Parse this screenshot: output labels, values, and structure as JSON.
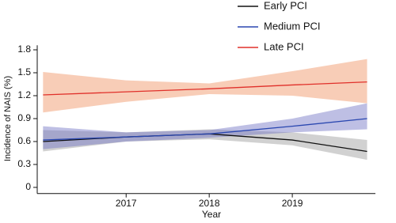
{
  "chart_data": {
    "type": "line",
    "y_label": "Incidence of NAIS (%)",
    "x_label": "Year",
    "x": [
      2016,
      2017,
      2018,
      2019,
      2019.9
    ],
    "xlim": [
      2015.93,
      2020.0
    ],
    "xticks": [
      2017,
      2018,
      2019
    ],
    "ylim": [
      -0.08,
      1.86
    ],
    "yticks": [
      0,
      0.3,
      0.6,
      0.9,
      1.2,
      1.5,
      1.8
    ],
    "series": [
      {
        "name": "Early PCI",
        "color": "#111111",
        "band_color": "#9a9a9a",
        "values": [
          0.6,
          0.66,
          0.7,
          0.62,
          0.47
        ],
        "lower": [
          0.47,
          0.6,
          0.63,
          0.55,
          0.36
        ],
        "upper": [
          0.75,
          0.72,
          0.76,
          0.72,
          0.62
        ]
      },
      {
        "name": "Medium PCI",
        "color": "#2a47b0",
        "band_color": "#6f72c4",
        "values": [
          0.62,
          0.66,
          0.7,
          0.8,
          0.9
        ],
        "lower": [
          0.5,
          0.6,
          0.65,
          0.72,
          0.76
        ],
        "upper": [
          0.8,
          0.72,
          0.75,
          0.9,
          1.1
        ]
      },
      {
        "name": "Late PCI",
        "color": "#e0302a",
        "band_color": "#f09060",
        "values": [
          1.21,
          1.25,
          1.29,
          1.34,
          1.38
        ],
        "lower": [
          0.98,
          1.12,
          1.22,
          1.2,
          1.1
        ],
        "upper": [
          1.51,
          1.4,
          1.36,
          1.52,
          1.68
        ]
      }
    ]
  }
}
